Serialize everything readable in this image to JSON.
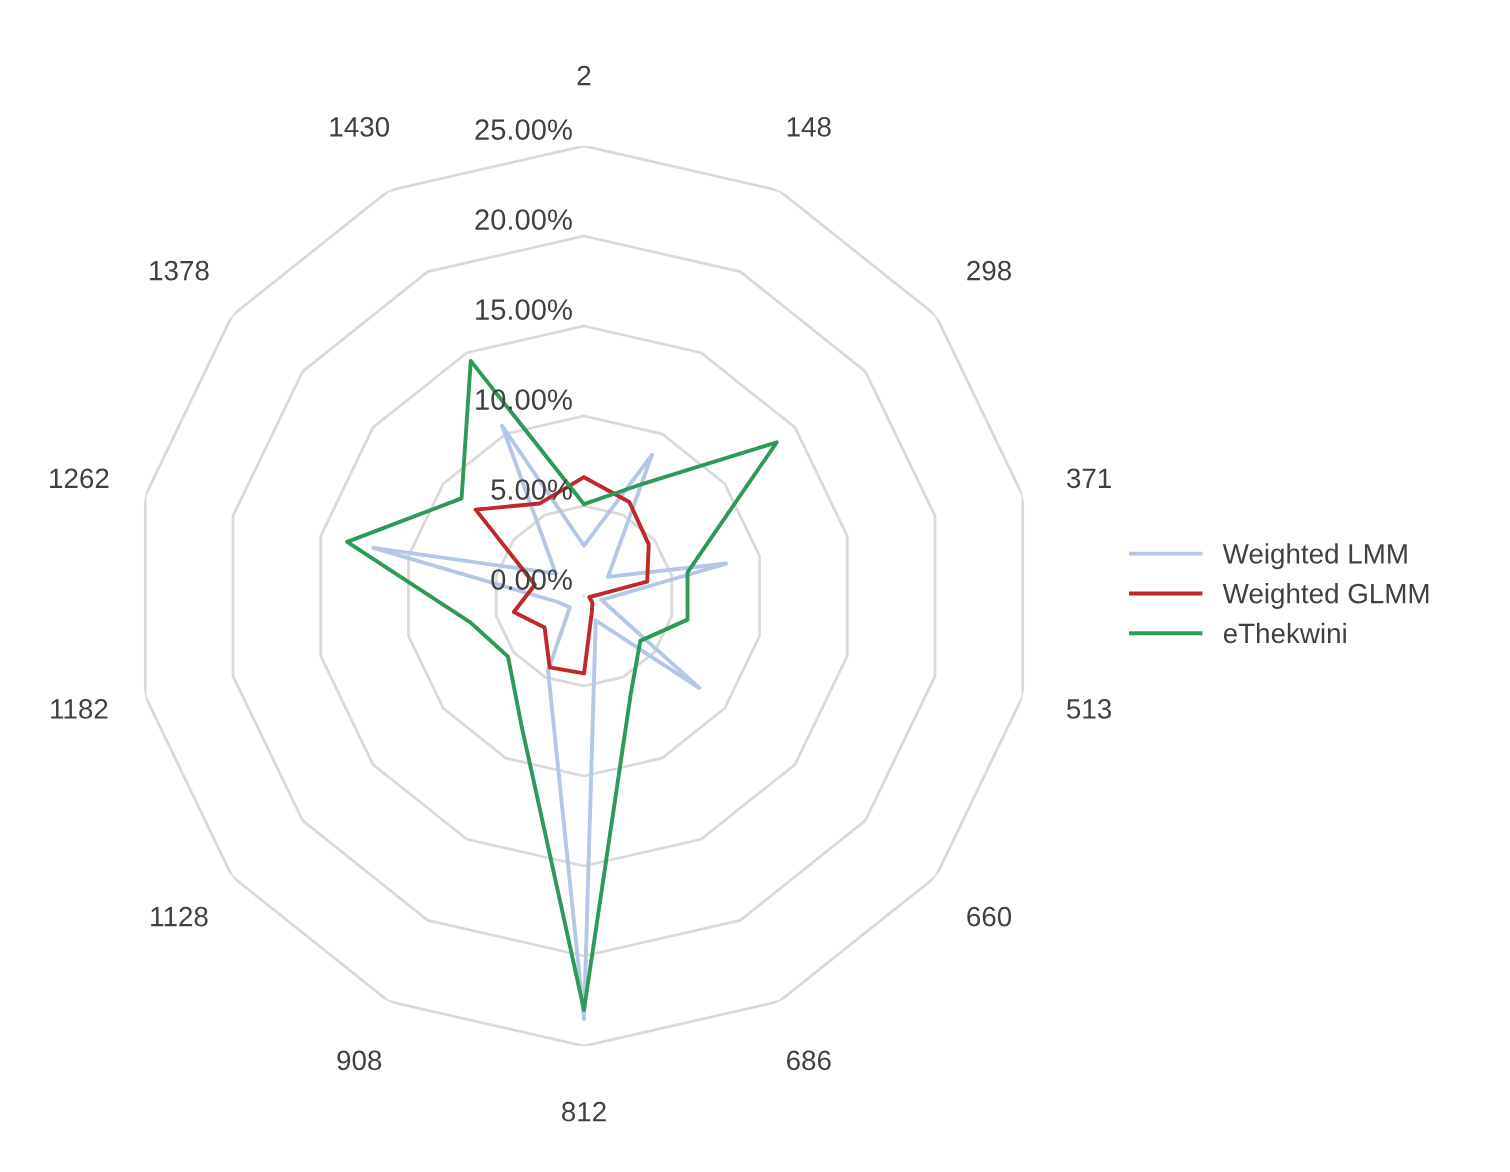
{
  "chart_data": {
    "type": "radar",
    "categories": [
      "2",
      "148",
      "298",
      "371",
      "513",
      "660",
      "686",
      "812",
      "908",
      "1128",
      "1182",
      "1262",
      "1378",
      "1430"
    ],
    "series": [
      {
        "name": "Weighted LMM",
        "color": "#b4c7e7",
        "values": [
          2.8,
          8.7,
          1.7,
          8.1,
          1.0,
          8.2,
          1.5,
          23.5,
          4.6,
          1.0,
          1.5,
          12.0,
          2.0,
          10.5
        ]
      },
      {
        "name": "Weighted GLMM",
        "color": "#c0282a",
        "values": [
          6.6,
          5.8,
          4.6,
          3.6,
          0.3,
          0.6,
          1.0,
          4.3,
          4.4,
          2.8,
          4.0,
          2.8,
          7.7,
          5.7
        ]
      },
      {
        "name": "eThekwini",
        "color": "#2e9a5a",
        "values": [
          5.1,
          6.8,
          13.7,
          5.9,
          5.9,
          4.0,
          6.0,
          23.0,
          8.0,
          5.4,
          6.5,
          13.5,
          8.7,
          14.5
        ]
      }
    ],
    "ylim": [
      0,
      25
    ],
    "yticks": [
      {
        "value": 0,
        "label": "0.00%"
      },
      {
        "value": 5,
        "label": "5.00%"
      },
      {
        "value": 10,
        "label": "10.00%"
      },
      {
        "value": 15,
        "label": "15.00%"
      },
      {
        "value": 20,
        "label": "20.00%"
      },
      {
        "value": 25,
        "label": "25.00%"
      }
    ],
    "grid": true,
    "legend": "right"
  }
}
